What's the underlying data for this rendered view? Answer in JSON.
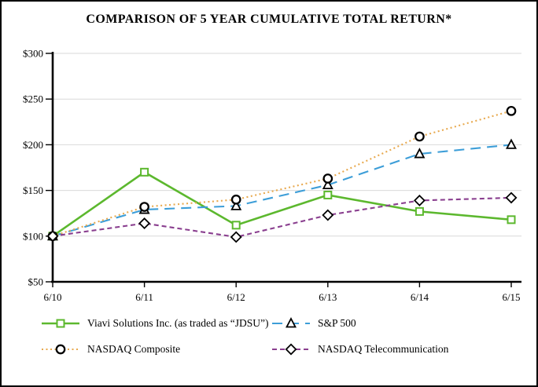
{
  "page": {
    "title": "COMPARISON OF 5 YEAR CUMULATIVE TOTAL RETURN*"
  },
  "chart_data": {
    "type": "line",
    "title": "COMPARISON OF 5 YEAR CUMULATIVE TOTAL RETURN*",
    "xlabel": "",
    "ylabel": "",
    "categories": [
      "6/10",
      "6/11",
      "6/12",
      "6/13",
      "6/14",
      "6/15"
    ],
    "series": [
      {
        "name": "Viavi Solutions Inc. (as traded as “JDSU”)",
        "values": [
          100,
          170,
          112,
          145,
          127,
          118
        ],
        "color": "#5cb82e",
        "line_style": "solid",
        "marker": "square",
        "marker_color": "#5cb82e"
      },
      {
        "name": "S&P 500",
        "values": [
          100,
          129,
          133,
          156,
          190,
          200
        ],
        "color": "#3d9ed8",
        "line_style": "long-dash",
        "marker": "triangle",
        "marker_color": "#000000"
      },
      {
        "name": "NASDAQ Composite",
        "values": [
          100,
          132,
          140,
          163,
          209,
          237
        ],
        "color": "#e8a94e",
        "line_style": "dotted",
        "marker": "circle",
        "marker_color": "#000000"
      },
      {
        "name": "NASDAQ Telecommunication",
        "values": [
          100,
          114,
          99,
          123,
          139,
          142
        ],
        "color": "#8a3f8f",
        "line_style": "dash",
        "marker": "diamond",
        "marker_color": "#000000"
      }
    ],
    "ylim": [
      50,
      300
    ],
    "y_tick_values": [
      50,
      100,
      150,
      200,
      250,
      300
    ],
    "y_tick_labels": [
      "$50",
      "$100",
      "$150",
      "$200",
      "$250",
      "$300"
    ],
    "grid": "horizontal",
    "gridline_color": "#d9d9d9",
    "axis_color": "#000000",
    "legend_position": "bottom"
  }
}
